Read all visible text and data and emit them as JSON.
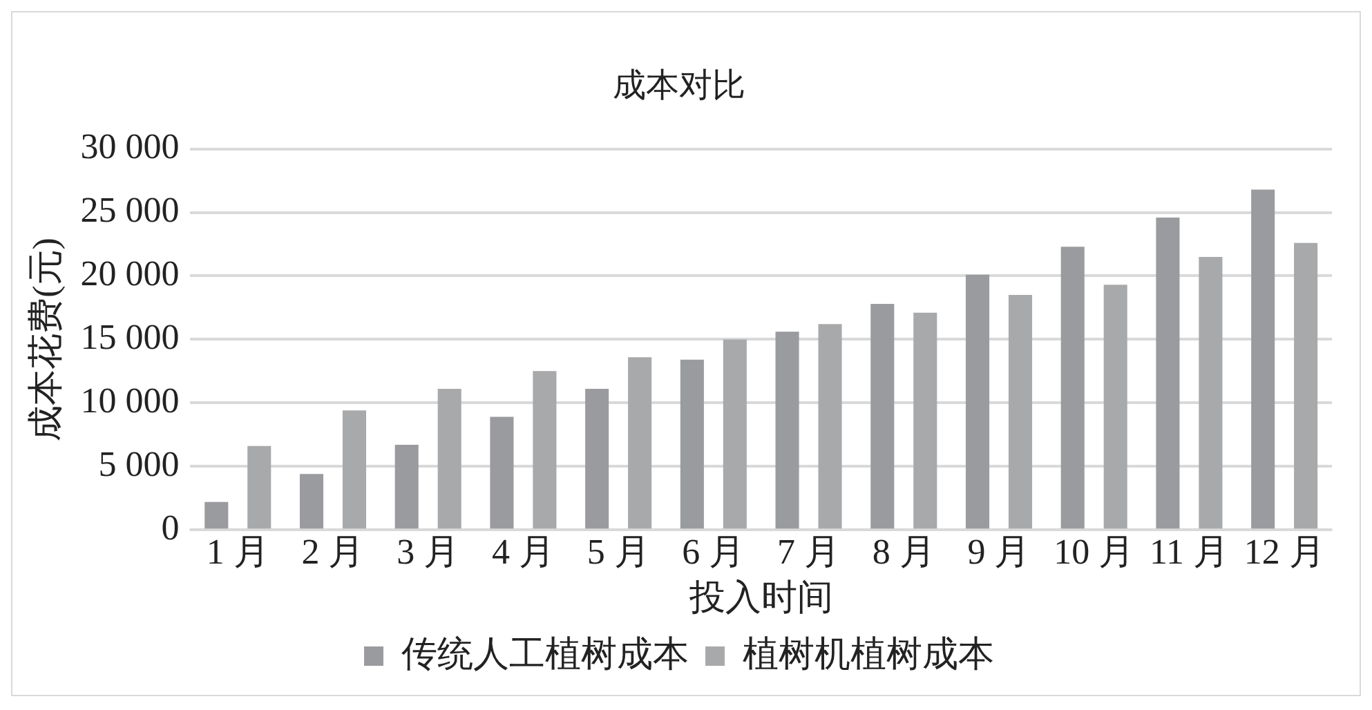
{
  "chart_data": {
    "type": "bar",
    "title": "成本对比",
    "xlabel": "投入时间",
    "ylabel": "成本花费(元)",
    "categories": [
      "1 月",
      "2 月",
      "3 月",
      "4 月",
      "5 月",
      "6 月",
      "7 月",
      "8 月",
      "9 月",
      "10 月",
      "11 月",
      "12 月"
    ],
    "series": [
      {
        "name": "传统人工植树成本",
        "color": "#9a9b9e",
        "values": [
          2200,
          4400,
          6700,
          8900,
          11100,
          13400,
          15600,
          17800,
          20100,
          22300,
          24600,
          26800
        ]
      },
      {
        "name": "植树机植树成本",
        "color": "#a8a9ab",
        "values": [
          6600,
          9400,
          11100,
          12500,
          13600,
          15000,
          16200,
          17100,
          18500,
          19300,
          21500,
          22600
        ]
      }
    ],
    "ylim": [
      0,
      30000
    ],
    "yticks": [
      0,
      {
        "value": 5000,
        "label": "5 000"
      },
      {
        "value": 10000,
        "label": "10 000"
      },
      {
        "value": 15000,
        "label": "15 000"
      },
      {
        "value": 20000,
        "label": "20 000"
      },
      {
        "value": 25000,
        "label": "25 000"
      },
      {
        "value": 30000,
        "label": "30 000"
      }
    ],
    "grid": "y",
    "legend": "bottom"
  }
}
